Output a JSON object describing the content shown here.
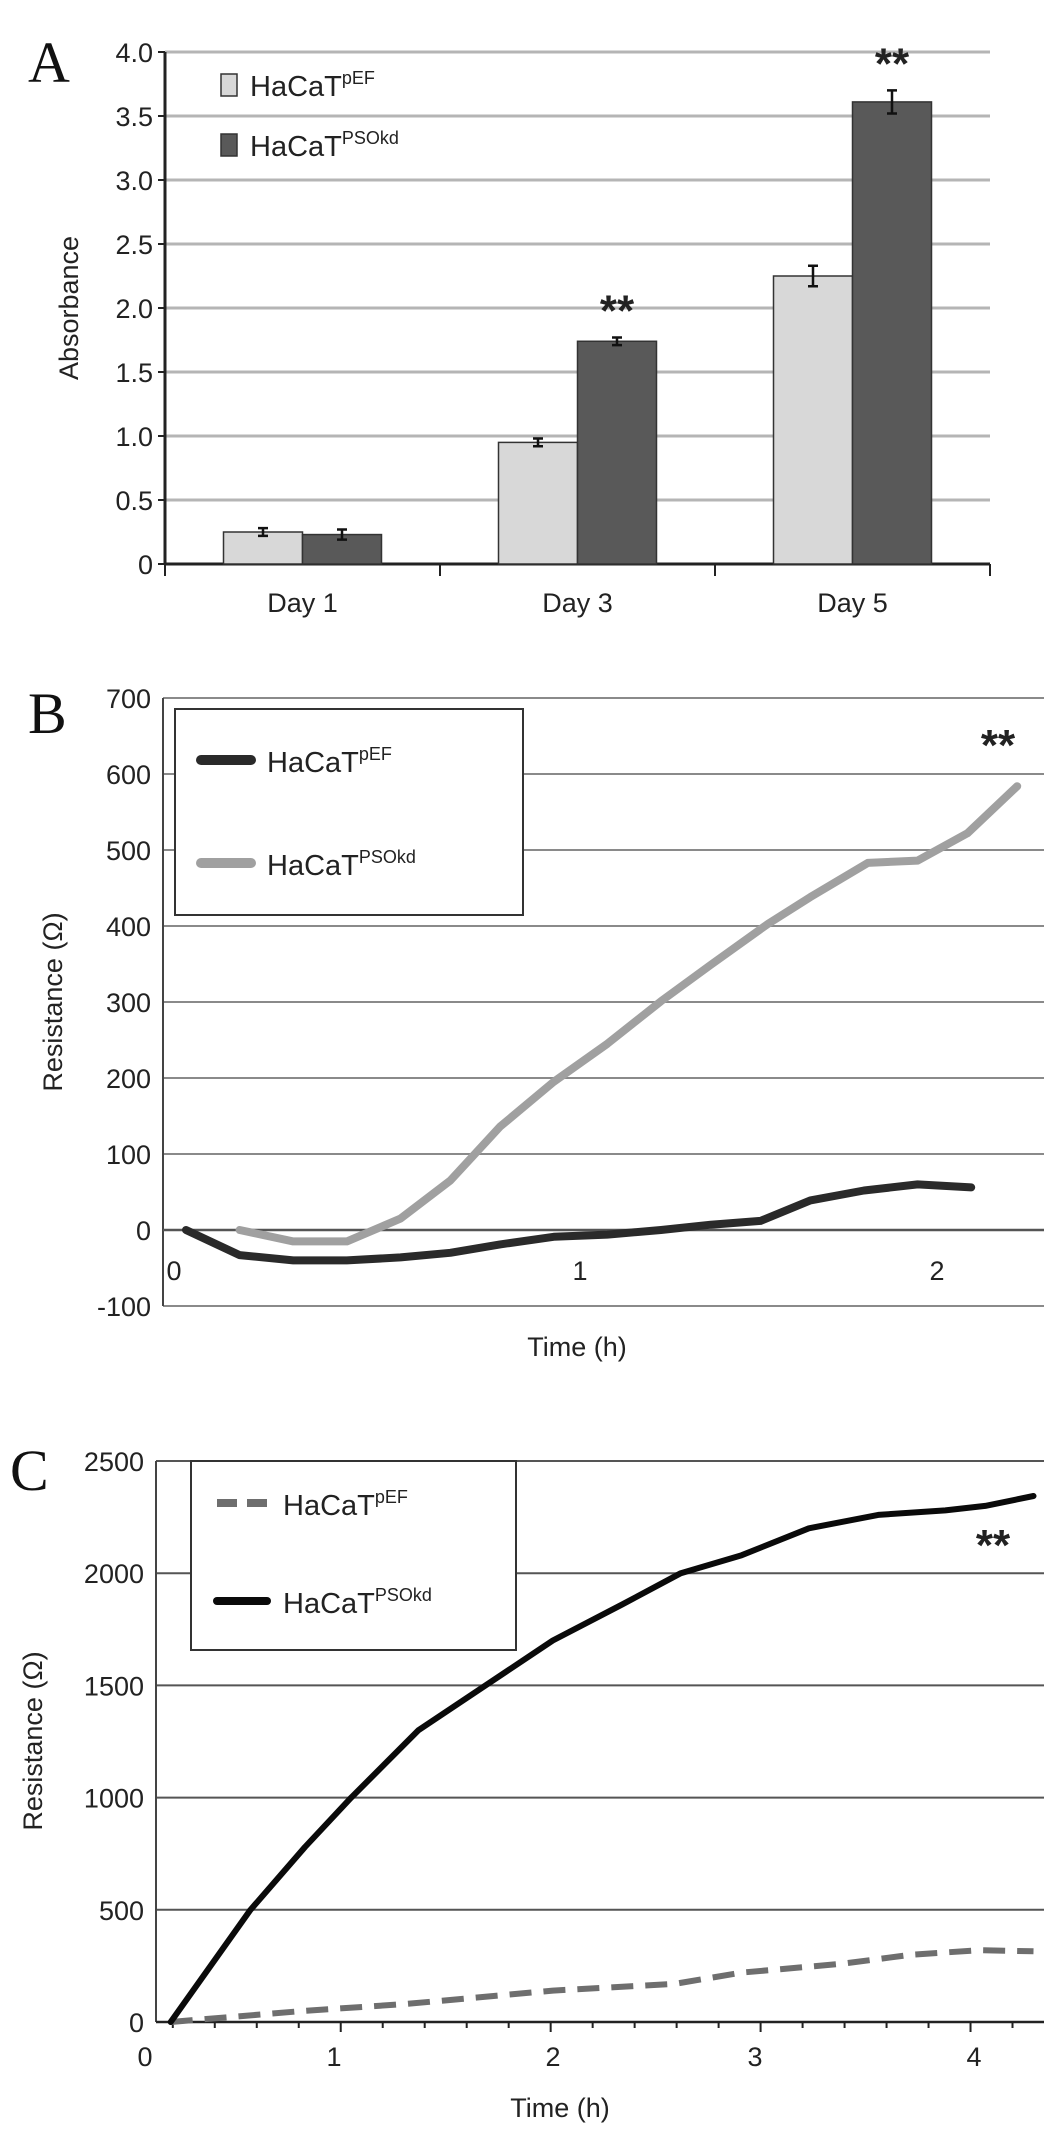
{
  "chart_data": [
    {
      "panel": "A",
      "type": "bar",
      "categories": [
        "Day 1",
        "Day 3",
        "Day 5"
      ],
      "series": [
        {
          "name": "HaCaT",
          "sup": "pEF",
          "color": "#d8d8d8",
          "values": [
            0.25,
            0.95,
            2.25
          ],
          "errors": [
            0.03,
            0.03,
            0.08
          ]
        },
        {
          "name": "HaCaT",
          "sup": "PSOkd",
          "color": "#595959",
          "values": [
            0.23,
            1.74,
            3.61
          ],
          "errors": [
            0.04,
            0.03,
            0.09
          ]
        }
      ],
      "ylabel": "Absorbance",
      "xlabel": "",
      "ylim": [
        0,
        4.0
      ],
      "yticks": [
        "0",
        "0.5",
        "1.0",
        "1.5",
        "2.0",
        "2.5",
        "3.0",
        "3.5",
        "4.0"
      ],
      "significance": [
        {
          "category": "Day 3",
          "label": "**"
        },
        {
          "category": "Day 5",
          "label": "**"
        }
      ],
      "grid": true,
      "legend": "top-left"
    },
    {
      "panel": "B",
      "type": "line",
      "series": [
        {
          "name": "HaCaT",
          "sup": "pEF",
          "color": "#2a2a2a",
          "dash": false,
          "x": [
            0.03,
            0.17,
            0.31,
            0.45,
            0.59,
            0.72,
            0.85,
            0.99,
            1.13,
            1.27,
            1.4,
            1.53,
            1.66,
            1.8,
            1.94,
            2.08
          ],
          "y": [
            0,
            -33,
            -40,
            -40,
            -36,
            -30,
            -19,
            -9,
            -6,
            0,
            7,
            12,
            39,
            52,
            60,
            56
          ]
        },
        {
          "name": "HaCaT",
          "sup": "PSOkd",
          "color": "#a0a0a0",
          "dash": false,
          "x": [
            0.17,
            0.31,
            0.45,
            0.59,
            0.72,
            0.85,
            0.99,
            1.13,
            1.27,
            1.4,
            1.55,
            1.66,
            1.81,
            1.94,
            2.07,
            2.2
          ],
          "y": [
            0,
            -15,
            -15,
            15,
            65,
            136,
            195,
            245,
            301,
            349,
            403,
            438,
            483,
            486,
            522,
            584
          ]
        }
      ],
      "xlabel": "Time (h)",
      "ylabel": "Resistance (Ω)",
      "xlim": [
        -0.03,
        2.27
      ],
      "ylim": [
        -100,
        700
      ],
      "xticks": [
        "0",
        "1",
        "2"
      ],
      "yticks": [
        "-100",
        "0",
        "100",
        "200",
        "300",
        "400",
        "500",
        "600",
        "700"
      ],
      "annotation": "**",
      "grid": true,
      "legend": "top-left"
    },
    {
      "panel": "C",
      "type": "line",
      "series": [
        {
          "name": "HaCaT",
          "sup": "pEF",
          "color": "#6e6e6e",
          "dash": true,
          "x": [
            0.19,
            0.83,
            1.31,
            2.01,
            2.59,
            2.91,
            3.39,
            3.72,
            4.04,
            4.3
          ],
          "y": [
            0,
            50,
            80,
            140,
            170,
            220,
            260,
            300,
            320,
            315
          ]
        },
        {
          "name": "HaCaT",
          "sup": "PSOkd",
          "color": "#0a0a0a",
          "dash": false,
          "x": [
            0.19,
            0.57,
            0.83,
            1.05,
            1.37,
            1.69,
            2.01,
            2.34,
            2.62,
            2.91,
            3.23,
            3.56,
            3.88,
            4.07,
            4.3
          ],
          "y": [
            0,
            500,
            780,
            1000,
            1300,
            1500,
            1700,
            1860,
            2000,
            2080,
            2200,
            2260,
            2280,
            2300,
            2344
          ]
        }
      ],
      "xlabel": "Time (h)",
      "ylabel": "Resistance (Ω)",
      "xlim": [
        0.12,
        4.35
      ],
      "ylim": [
        0,
        2500
      ],
      "xticks": [
        "0",
        "1",
        "2",
        "3",
        "4"
      ],
      "yticks": [
        "0",
        "500",
        "1000",
        "1500",
        "2000",
        "2500"
      ],
      "annotation": "**",
      "grid": true,
      "legend": "top-left"
    }
  ]
}
